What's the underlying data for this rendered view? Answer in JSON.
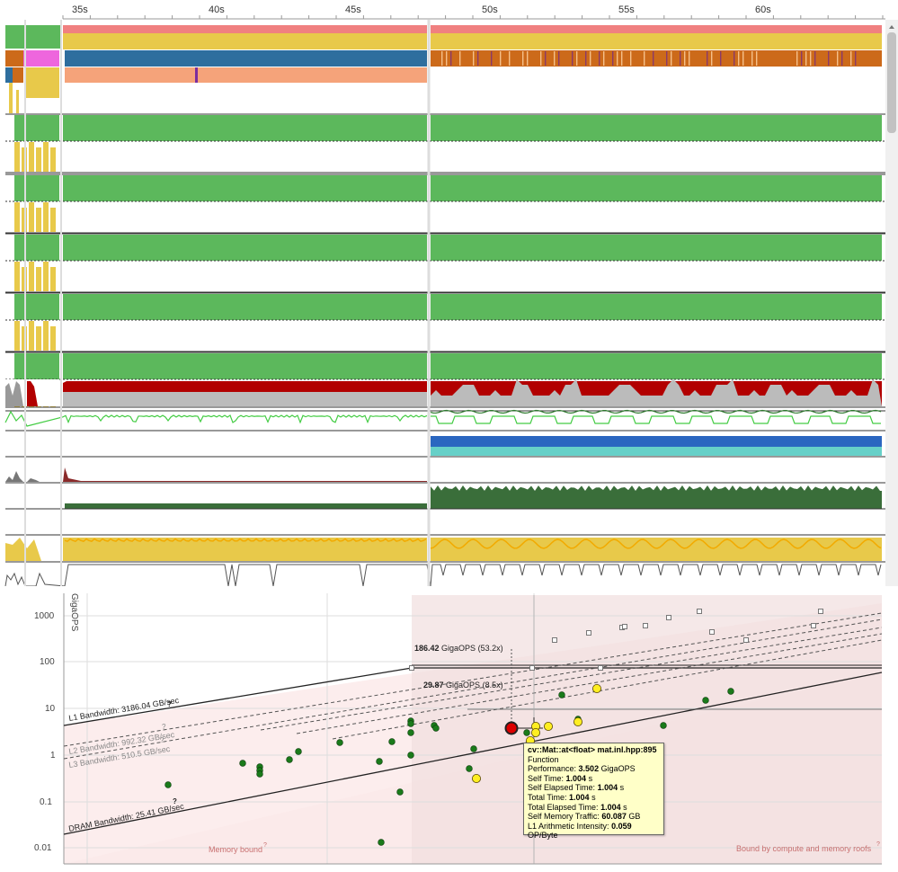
{
  "timeline": {
    "time_ticks": [
      "35s",
      "40s",
      "45s",
      "50s",
      "55s",
      "60s"
    ]
  },
  "roofline": {
    "y_axis_label": "GigaOPS",
    "y_ticks": [
      "1000",
      "100",
      "10",
      "1",
      "0.1",
      "0.01"
    ],
    "roofs": [
      {
        "label": "L1 Bandwidth: 3186.04 GB/sec",
        "help": "?"
      },
      {
        "label": "L2 Bandwidth: 992.32 GB/sec",
        "help": "?"
      },
      {
        "label": "L3 Bandwidth: 510.5 GB/sec",
        "help": "?"
      },
      {
        "label": "DRAM Bandwidth: 25.41 GB/sec",
        "help": "?"
      }
    ],
    "compute_roofs": [
      {
        "value": "186.42",
        "unit": "GigaOPS",
        "factor": "(53.2x)"
      },
      {
        "value": "29.87",
        "unit": "GigaOPS",
        "factor": "(8.5x)"
      }
    ],
    "region_left": "Memory bound",
    "region_right": "Bound by compute and memory roofs",
    "help_mark": "?",
    "colors": {
      "green_dot": "#1a7a1a",
      "yellow_dot": "#ffee22",
      "selected_dot": "#dd0000",
      "region": "#f7e6e6"
    }
  },
  "tooltip": {
    "title": "cv::Mat::at<float> mat.inl.hpp:895",
    "type": "Function",
    "rows": [
      {
        "label": "Performance:",
        "value": "3.502",
        "unit": "GigaOPS"
      },
      {
        "label": "Self Time:",
        "value": "1.004",
        "unit": "s"
      },
      {
        "label": "Self Elapsed Time:",
        "value": "1.004",
        "unit": "s"
      },
      {
        "label": "Total Time:",
        "value": "1.004",
        "unit": "s"
      },
      {
        "label": "Total Elapsed Time:",
        "value": "1.004",
        "unit": "s"
      },
      {
        "label": "Self Memory Traffic:",
        "value": "60.087",
        "unit": "GB"
      },
      {
        "label": "L1 Arithmetic Intensity:",
        "value": "0.059",
        "unit": "OP/Byte"
      }
    ]
  }
}
